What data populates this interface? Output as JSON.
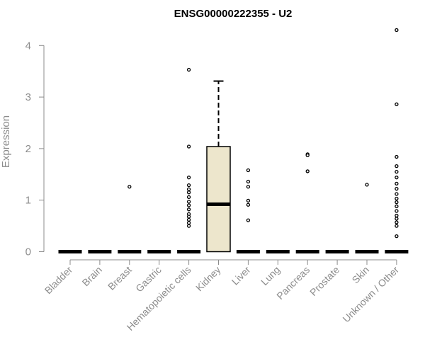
{
  "chart_data": {
    "type": "boxplot",
    "title": "ENSG00000222355 - U2",
    "xlabel": "",
    "ylabel": "Expression",
    "ylim": [
      0,
      4.4
    ],
    "yticks": [
      0,
      1,
      2,
      3,
      4
    ],
    "grid": false,
    "box_fill": "#ede6cc",
    "categories": [
      "Bladder",
      "Brain",
      "Breast",
      "Gastric",
      "Hematopoietic cells",
      "Kidney",
      "Liver",
      "Lung",
      "Pancreas",
      "Prostate",
      "Skin",
      "Unknown / Other"
    ],
    "boxes": [
      {
        "category": "Bladder",
        "min": 0,
        "q1": 0,
        "median": 0,
        "q3": 0,
        "max": 0,
        "outliers": []
      },
      {
        "category": "Brain",
        "min": 0,
        "q1": 0,
        "median": 0,
        "q3": 0,
        "max": 0,
        "outliers": []
      },
      {
        "category": "Breast",
        "min": 0,
        "q1": 0,
        "median": 0,
        "q3": 0,
        "max": 0,
        "outliers": [
          1.26
        ]
      },
      {
        "category": "Gastric",
        "min": 0,
        "q1": 0,
        "median": 0,
        "q3": 0,
        "max": 0,
        "outliers": []
      },
      {
        "category": "Hematopoietic cells",
        "min": 0,
        "q1": 0,
        "median": 0,
        "q3": 0,
        "max": 0,
        "outliers": [
          3.53,
          2.04,
          1.44,
          1.29,
          1.21,
          1.15,
          1.06,
          0.97,
          0.9,
          0.82,
          0.73,
          0.68,
          0.62,
          0.56,
          0.5
        ]
      },
      {
        "category": "Kidney",
        "min": 0,
        "q1": 0,
        "median": 0.92,
        "q3": 2.04,
        "max": 3.31,
        "outliers": []
      },
      {
        "category": "Liver",
        "min": 0,
        "q1": 0,
        "median": 0,
        "q3": 0,
        "max": 0,
        "outliers": [
          1.58,
          1.36,
          1.26,
          0.99,
          0.91,
          0.61
        ]
      },
      {
        "category": "Lung",
        "min": 0,
        "q1": 0,
        "median": 0,
        "q3": 0,
        "max": 0,
        "outliers": []
      },
      {
        "category": "Pancreas",
        "min": 0,
        "q1": 0,
        "median": 0,
        "q3": 0,
        "max": 0,
        "outliers": [
          1.89,
          1.87,
          1.56
        ]
      },
      {
        "category": "Prostate",
        "min": 0,
        "q1": 0,
        "median": 0,
        "q3": 0,
        "max": 0,
        "outliers": []
      },
      {
        "category": "Skin",
        "min": 0,
        "q1": 0,
        "median": 0,
        "q3": 0,
        "max": 0,
        "outliers": [
          1.3
        ]
      },
      {
        "category": "Unknown / Other",
        "min": 0,
        "q1": 0,
        "median": 0,
        "q3": 0,
        "max": 0,
        "outliers": [
          4.3,
          2.86,
          1.84,
          1.66,
          1.55,
          1.44,
          1.32,
          1.22,
          1.12,
          1.03,
          0.96,
          0.88,
          0.79,
          0.7,
          0.64,
          0.57,
          0.5,
          0.3
        ]
      }
    ]
  }
}
